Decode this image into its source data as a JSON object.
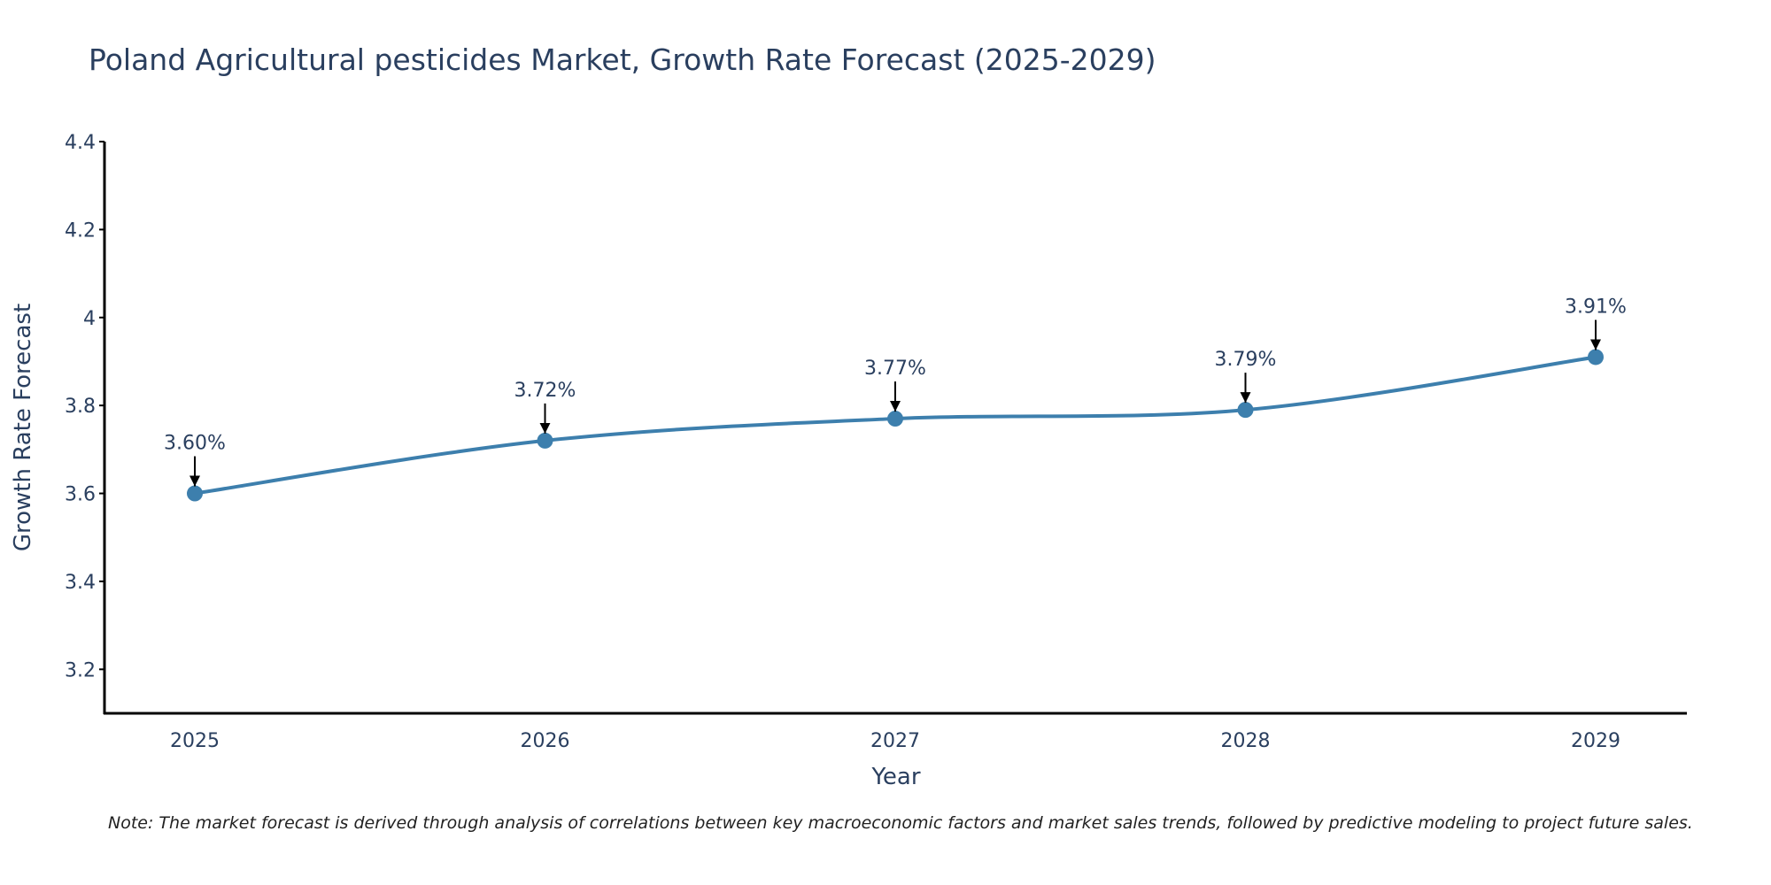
{
  "chart_data": {
    "type": "line",
    "title": "Poland Agricultural pesticides Market, Growth Rate Forecast (2025-2029)",
    "xlabel": "Year",
    "ylabel": "Growth Rate Forecast",
    "x": [
      "2025",
      "2026",
      "2027",
      "2028",
      "2029"
    ],
    "series": [
      {
        "name": "Growth Rate Forecast",
        "values": [
          3.6,
          3.72,
          3.77,
          3.79,
          3.91
        ],
        "labels": [
          "3.60%",
          "3.72%",
          "3.77%",
          "3.79%",
          "3.91%"
        ]
      }
    ],
    "ylim": [
      3.1,
      4.4
    ],
    "yticks": [
      3.2,
      3.4,
      3.6,
      3.8,
      4.0,
      4.2,
      4.4
    ],
    "ytick_labels": [
      "3.2",
      "3.4",
      "3.6",
      "3.8",
      "4",
      "4.2",
      "4.4"
    ],
    "grid": false,
    "line_color": "#3d7fad",
    "marker_color": "#3d7fad"
  },
  "note": "Note: The market forecast is derived through analysis of correlations between key macroeconomic factors and market sales trends, followed by predictive modeling to project future sales."
}
